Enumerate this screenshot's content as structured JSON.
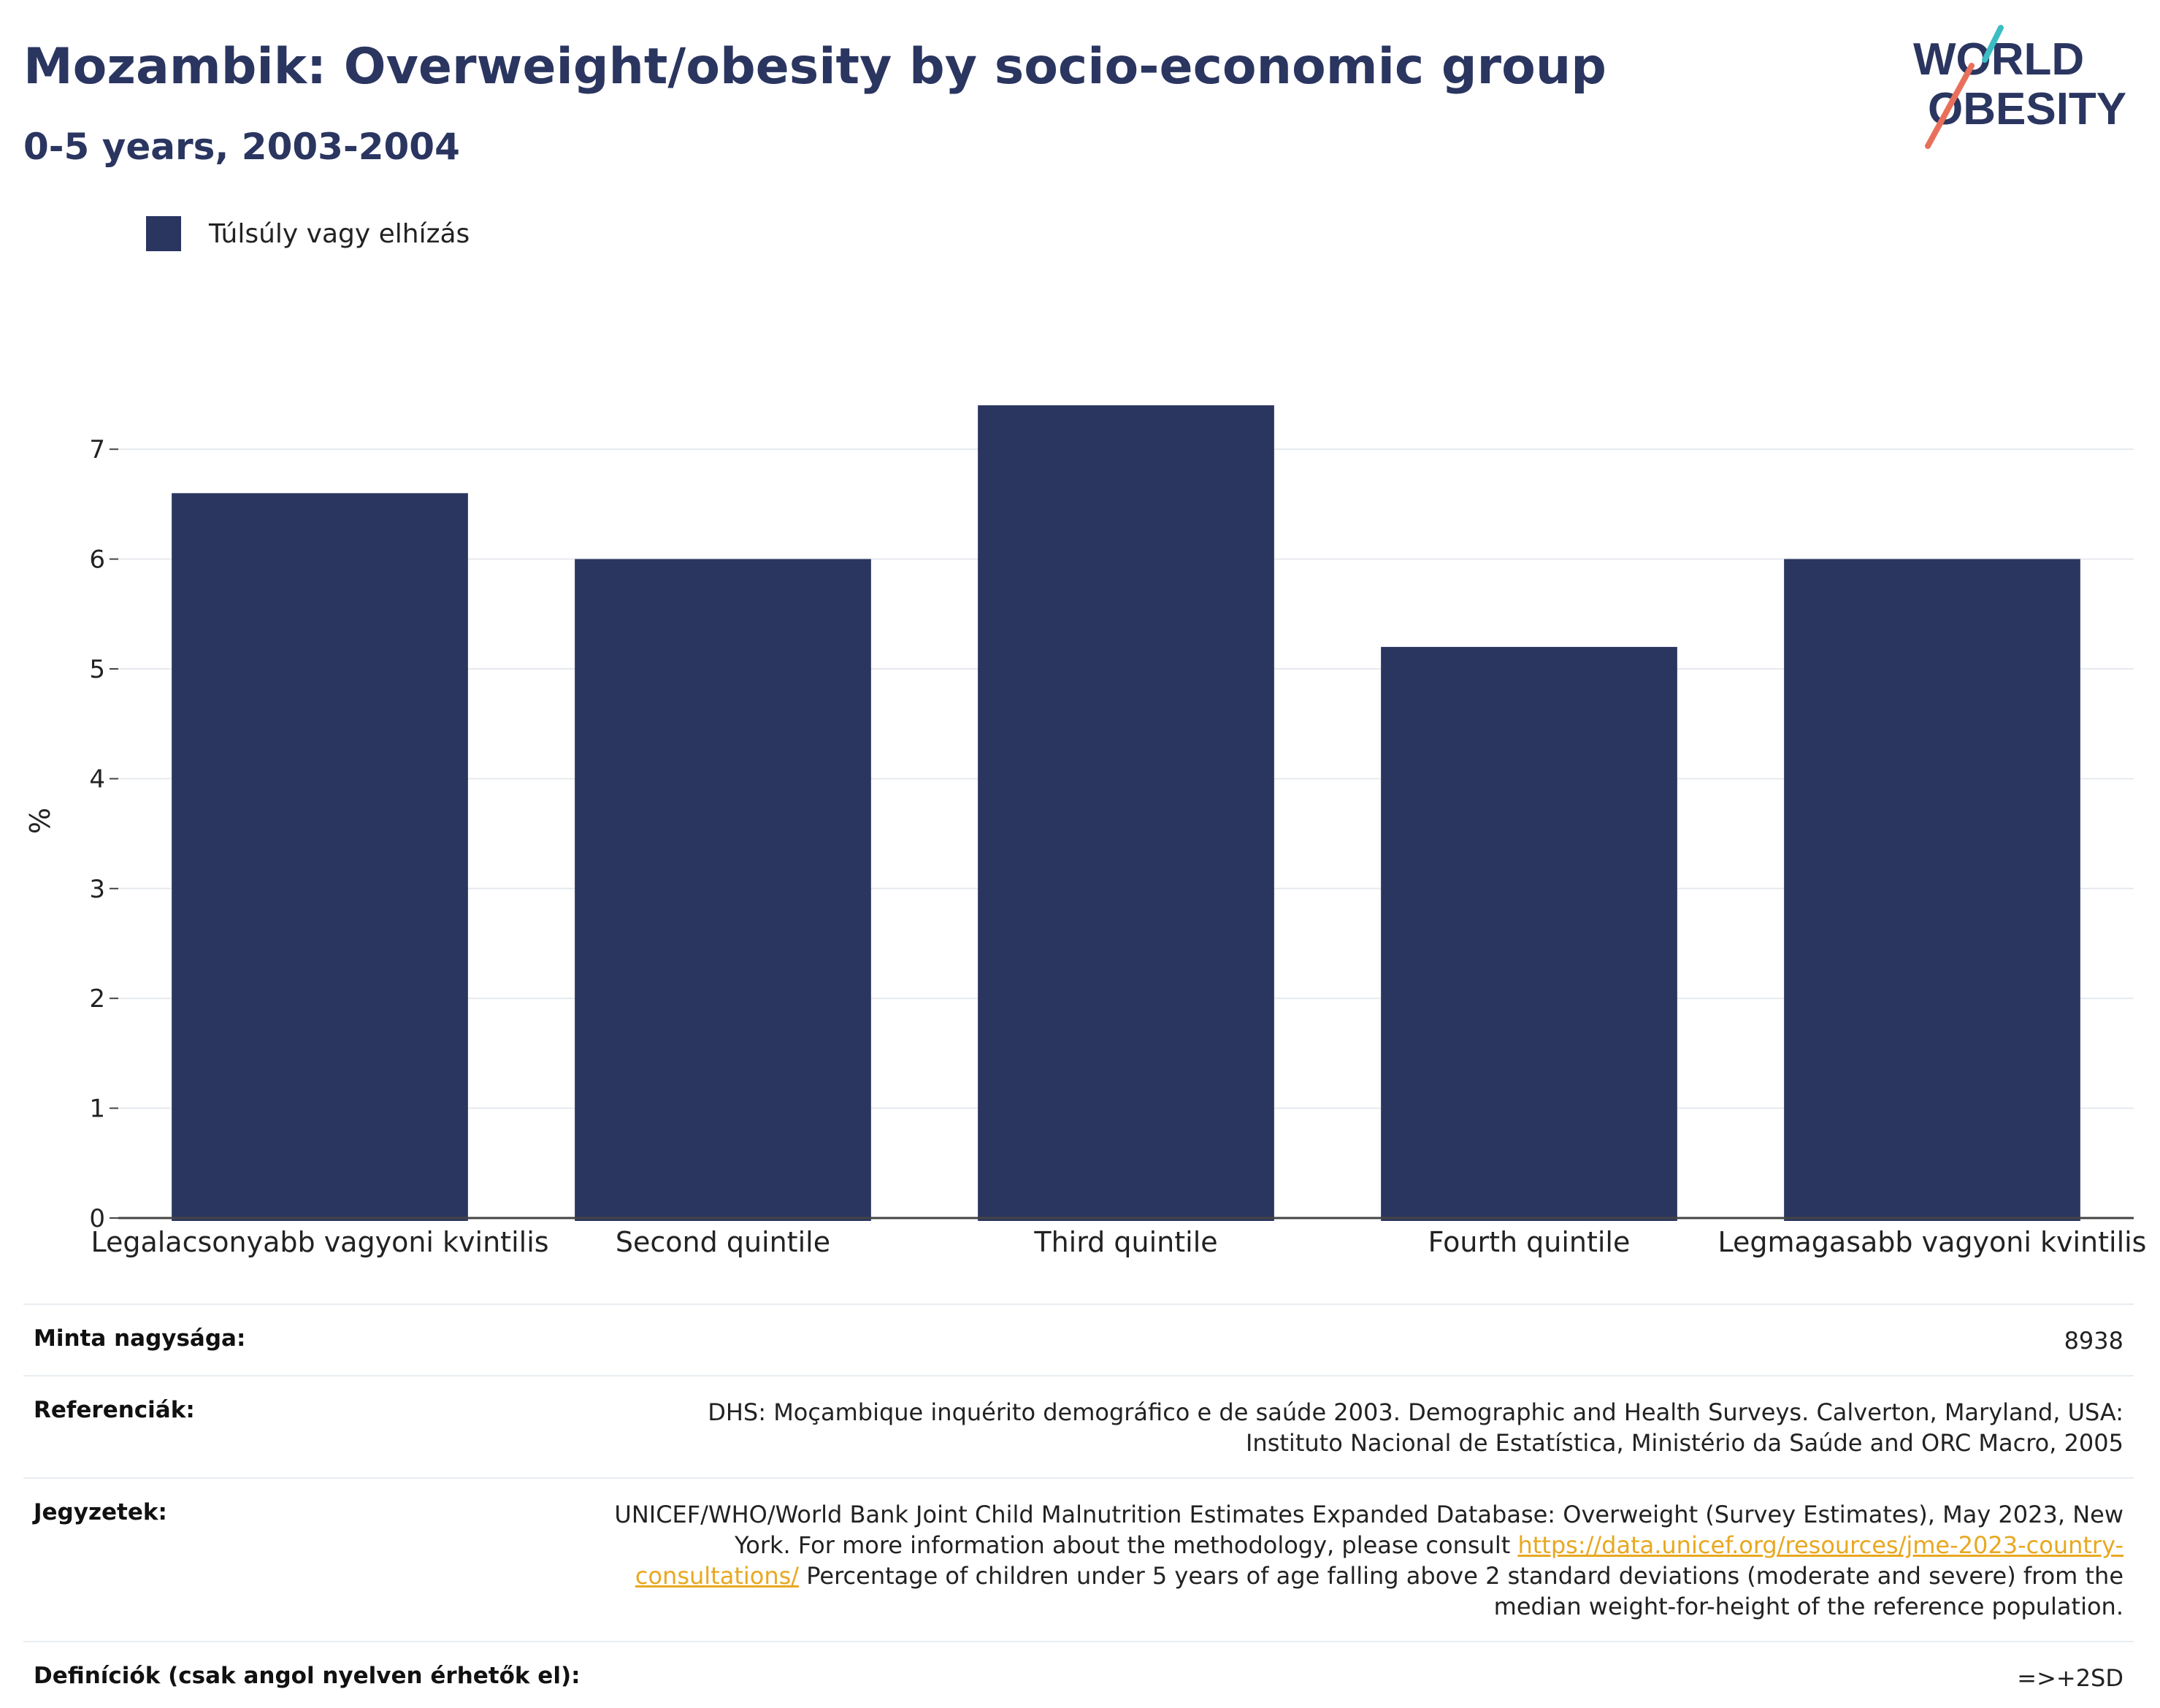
{
  "header": {
    "title": "Mozambik: Overweight/obesity by socio-economic group",
    "subtitle": "0-5 years, 2003-2004"
  },
  "logo": {
    "line1": "WORLD",
    "line2": "OBESITY",
    "accent_teal": "#3cbcc3",
    "accent_coral": "#e8705a"
  },
  "chart_data": {
    "type": "bar",
    "categories": [
      "Legalacsonyabb vagyoni kvintilis",
      "Second quintile",
      "Third quintile",
      "Fourth quintile",
      "Legmagasabb vagyoni kvintilis"
    ],
    "series": [
      {
        "name": "Túlsúly vagy elhízás",
        "values": [
          6.6,
          6.0,
          7.4,
          5.2,
          6.0
        ],
        "color": "#2a3560"
      }
    ],
    "ylabel": "%",
    "ylim": [
      0,
      7.5
    ],
    "yticks": [
      0,
      1,
      2,
      3,
      4,
      5,
      6,
      7
    ],
    "grid": true,
    "legend_position": "top-left"
  },
  "info_table": {
    "sample_label": "Minta nagysága:",
    "sample_value": "8938",
    "refs_label": "Referenciák:",
    "refs_value": "DHS: Moçambique inquérito demográfico e de saúde 2003. Demographic and Health Surveys. Calverton, Maryland, USA: Instituto Nacional de Estatística, Ministério da Saúde and ORC Macro, 2005",
    "notes_label": "Jegyzetek:",
    "notes_value_pre": "UNICEF/WHO/World Bank Joint Child Malnutrition Estimates Expanded Database: Overweight (Survey Estimates), May 2023, New York. For more information about the methodology, please consult ",
    "notes_link": "https://data.unicef.org/resources/jme-2023-country-consultations/",
    "notes_value_post": " Percentage of children under 5 years of age falling above 2 standard deviations (moderate and severe) from the median weight-for-height of the reference population.",
    "defs_label": "Definíciók (csak angol nyelven érhetők el):",
    "defs_value": "=>+2SD"
  }
}
